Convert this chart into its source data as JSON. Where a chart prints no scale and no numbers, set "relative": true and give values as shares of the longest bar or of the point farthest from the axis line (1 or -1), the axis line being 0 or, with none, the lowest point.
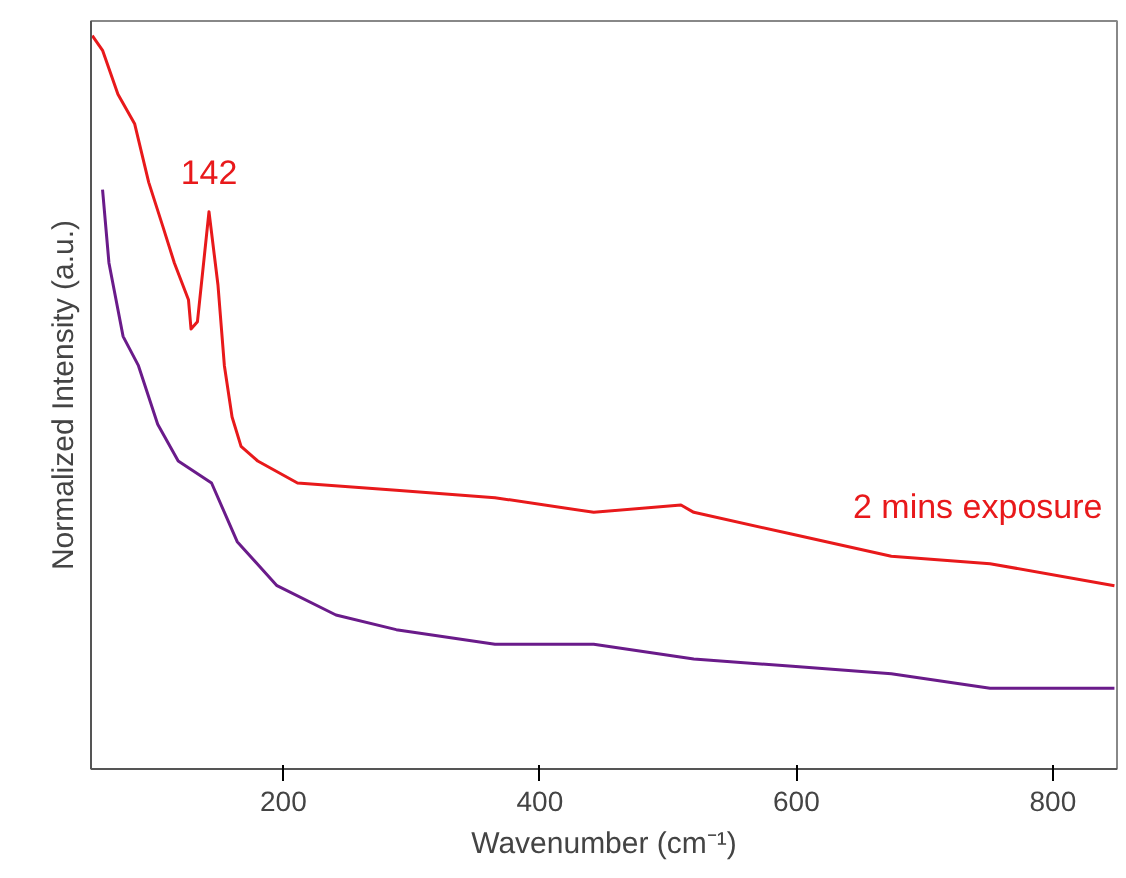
{
  "chart_data": {
    "type": "line",
    "relative": true,
    "xlabel": "Wavenumber (cm⁻¹)",
    "ylabel": "Normalized Intensity (a.u.)",
    "xlim": [
      50,
      850
    ],
    "xticks": [
      200,
      400,
      600,
      800
    ],
    "grid": false,
    "annotations": [
      {
        "text": "142",
        "x": 142,
        "y": 0.76
      }
    ],
    "series": [
      {
        "name": "2 mins exposure",
        "color": "#e8191b",
        "x": [
          51,
          59,
          71,
          84,
          95,
          106,
          115,
          126,
          128,
          133,
          142,
          149,
          154,
          160,
          167,
          180,
          211,
          288,
          365,
          442,
          510,
          520,
          597,
          674,
          751,
          848
        ],
        "values": [
          1.0,
          0.98,
          0.92,
          0.88,
          0.8,
          0.74,
          0.69,
          0.64,
          0.6,
          0.61,
          0.76,
          0.66,
          0.55,
          0.48,
          0.44,
          0.42,
          0.39,
          0.38,
          0.37,
          0.35,
          0.36,
          0.35,
          0.32,
          0.29,
          0.28,
          0.25
        ]
      },
      {
        "color": "#6a1b8a",
        "x": [
          59,
          64,
          75,
          87,
          102,
          118,
          144,
          164,
          195,
          241,
          288,
          365,
          442,
          520,
          597,
          674,
          751,
          848
        ],
        "values": [
          0.79,
          0.69,
          0.59,
          0.55,
          0.47,
          0.42,
          0.39,
          0.31,
          0.25,
          0.21,
          0.19,
          0.17,
          0.17,
          0.15,
          0.14,
          0.13,
          0.11,
          0.11
        ]
      }
    ]
  }
}
